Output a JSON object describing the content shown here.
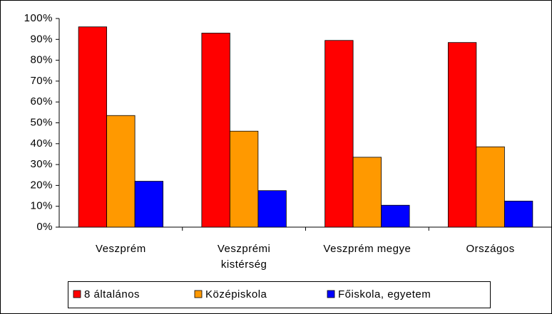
{
  "chart_data": {
    "type": "bar",
    "categories": [
      "Veszprém",
      "Veszprémi\nkistérség",
      "Veszprém megye",
      "Országos"
    ],
    "series": [
      {
        "name": "8 általános",
        "color": "#ff0000",
        "values": [
          96,
          93,
          89.5,
          88.5
        ]
      },
      {
        "name": "Középiskola",
        "color": "#ff9900",
        "values": [
          53.5,
          46,
          33.5,
          38.5
        ]
      },
      {
        "name": "Főiskola, egyetem",
        "color": "#0000ff",
        "values": [
          22,
          17.5,
          10.5,
          12.5
        ]
      }
    ],
    "ylim": [
      0,
      100
    ],
    "yticks": [
      {
        "value": 0,
        "label": "0%"
      },
      {
        "value": 10,
        "label": "10%"
      },
      {
        "value": 20,
        "label": "20%"
      },
      {
        "value": 30,
        "label": "30%"
      },
      {
        "value": 40,
        "label": "40%"
      },
      {
        "value": 50,
        "label": "50%"
      },
      {
        "value": 60,
        "label": "60%"
      },
      {
        "value": 70,
        "label": "70%"
      },
      {
        "value": 80,
        "label": "80%"
      },
      {
        "value": 90,
        "label": "90%"
      },
      {
        "value": 100,
        "label": "100%"
      }
    ],
    "legend": "bottom"
  }
}
